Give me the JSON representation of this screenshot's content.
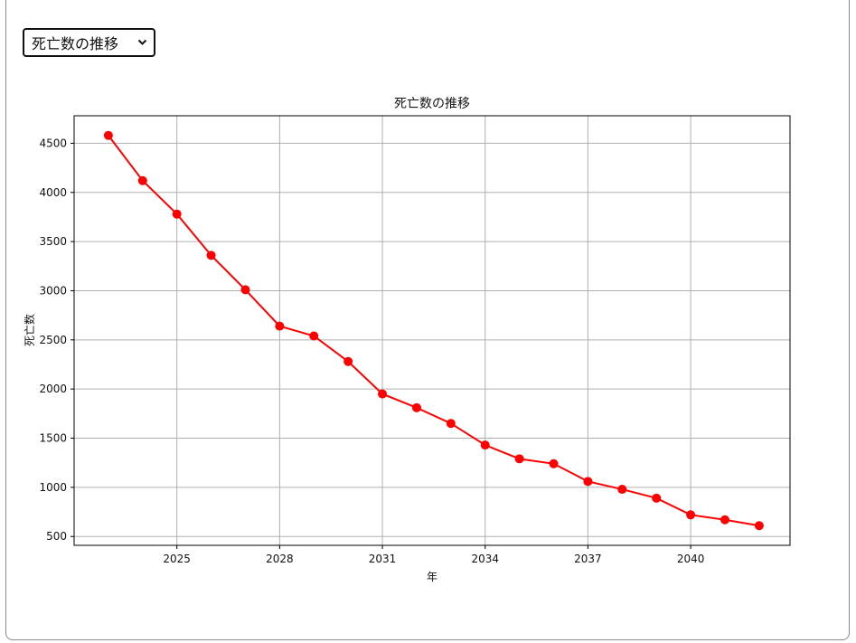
{
  "selector": {
    "selected": "死亡数の推移"
  },
  "colors": {
    "series": "#ff0000",
    "grid": "#b0b0b0",
    "axis": "#000000"
  },
  "chart_data": {
    "type": "line",
    "title": "死亡数の推移",
    "xlabel": "年",
    "ylabel": "死亡数",
    "xlim": [
      2022.0,
      2042.9
    ],
    "ylim": [
      410,
      4780
    ],
    "xticks": [
      2025,
      2028,
      2031,
      2034,
      2037,
      2040
    ],
    "yticks": [
      500,
      1000,
      1500,
      2000,
      2500,
      3000,
      3500,
      4000,
      4500
    ],
    "grid": true,
    "marker": "circle",
    "series": [
      {
        "x": [
          2023,
          2024,
          2025,
          2026,
          2027,
          2028,
          2029,
          2030,
          2031,
          2032,
          2033,
          2034,
          2035,
          2036,
          2037,
          2038,
          2039,
          2040,
          2041,
          2042
        ],
        "values": [
          4580,
          4120,
          3780,
          3360,
          3010,
          2640,
          2540,
          2280,
          1950,
          1810,
          1650,
          1430,
          1290,
          1240,
          1060,
          980,
          890,
          720,
          670,
          610
        ]
      }
    ]
  }
}
